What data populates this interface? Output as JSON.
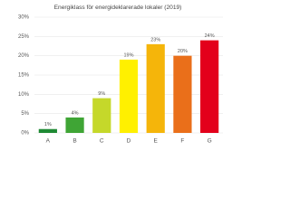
{
  "chart_data": {
    "type": "bar",
    "title": "Energiklass för energideklarerade lokaler (2019)",
    "categories": [
      "A",
      "B",
      "C",
      "D",
      "E",
      "F",
      "G"
    ],
    "values": [
      1,
      4,
      9,
      19,
      23,
      20,
      24
    ],
    "value_labels": [
      "1%",
      "4%",
      "9%",
      "19%",
      "23%",
      "20%",
      "24%"
    ],
    "colors": [
      "#1f8a34",
      "#3fa535",
      "#c5d82a",
      "#fff000",
      "#f5b50a",
      "#ea6f1a",
      "#e3001b"
    ],
    "ylim": [
      0,
      30
    ],
    "yticks": [
      {
        "value": 0,
        "label": "0%"
      },
      {
        "value": 5,
        "label": "5%"
      },
      {
        "value": 10,
        "label": "10%"
      },
      {
        "value": 15,
        "label": "15%"
      },
      {
        "value": 20,
        "label": "20%"
      },
      {
        "value": 25,
        "label": "25%"
      },
      {
        "value": 30,
        "label": "30%"
      }
    ],
    "grid": true
  }
}
